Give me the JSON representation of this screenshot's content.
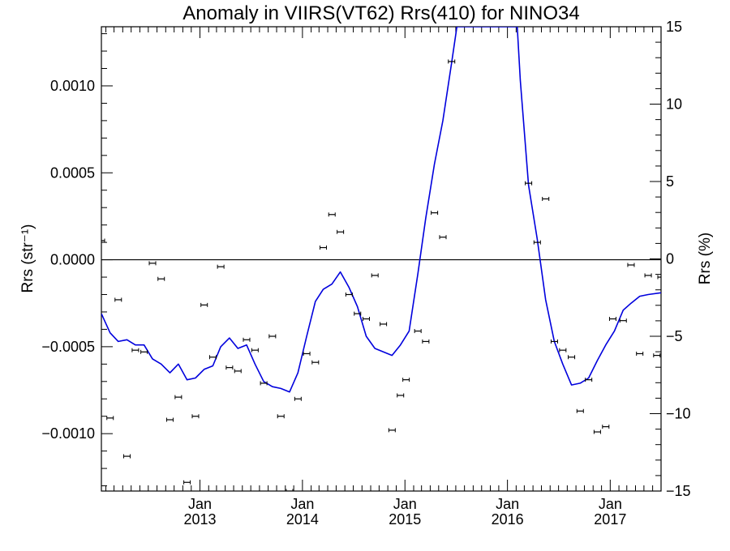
{
  "chart_data": {
    "type": "line",
    "title": "Anomaly in VIIRS(VT62) Rrs(410) for NINO34",
    "ylabel_left": "Rrs (str⁻¹)",
    "ylabel_right": "Rrs (%)",
    "xlabel": "",
    "x_range": [
      "2012-01-16",
      "2017-07-01"
    ],
    "ylim_left": [
      -0.00133,
      0.00134
    ],
    "ylim_right": [
      -15,
      15
    ],
    "grid": false,
    "legend": "none",
    "zero_line": true,
    "x_ticks": [
      {
        "date": "2013-01-01",
        "month": "Jan",
        "year": "2013"
      },
      {
        "date": "2014-01-01",
        "month": "Jan",
        "year": "2014"
      },
      {
        "date": "2015-01-01",
        "month": "Jan",
        "year": "2015"
      },
      {
        "date": "2016-01-01",
        "month": "Jan",
        "year": "2016"
      },
      {
        "date": "2017-01-01",
        "month": "Jan",
        "year": "2017"
      }
    ],
    "y_ticks_left": [
      {
        "value": 0.001,
        "label": "0.0010"
      },
      {
        "value": 0.0005,
        "label": "0.0005"
      },
      {
        "value": 0.0,
        "label": "0.0000"
      },
      {
        "value": -0.0005,
        "label": "−0.0005"
      },
      {
        "value": -0.001,
        "label": "−0.0010"
      }
    ],
    "y_ticks_right": [
      {
        "value": 15,
        "label": "15"
      },
      {
        "value": 10,
        "label": "10"
      },
      {
        "value": 5,
        "label": "5"
      },
      {
        "value": 0,
        "label": "0"
      },
      {
        "value": -5,
        "label": "−5"
      },
      {
        "value": -10,
        "label": "−10"
      },
      {
        "value": -15,
        "label": "−15"
      }
    ],
    "series": [
      {
        "axis": "left",
        "style": "points-with-errorbars",
        "color": "#000000",
        "points": [
          {
            "x": "2012-01-16",
            "y": 0.00011
          },
          {
            "x": "2012-02-16",
            "y": -0.00091
          },
          {
            "x": "2012-03-16",
            "y": -0.00023
          },
          {
            "x": "2012-04-16",
            "y": -0.00113
          },
          {
            "x": "2012-05-16",
            "y": -0.00052
          },
          {
            "x": "2012-06-16",
            "y": -0.00053
          },
          {
            "x": "2012-07-16",
            "y": -2e-05
          },
          {
            "x": "2012-08-16",
            "y": -0.00011
          },
          {
            "x": "2012-09-16",
            "y": -0.00092
          },
          {
            "x": "2012-10-16",
            "y": -0.00079
          },
          {
            "x": "2012-11-16",
            "y": -0.00128
          },
          {
            "x": "2012-12-16",
            "y": -0.0009
          },
          {
            "x": "2013-01-16",
            "y": -0.00026
          },
          {
            "x": "2013-02-16",
            "y": -0.00056
          },
          {
            "x": "2013-03-16",
            "y": -4e-05
          },
          {
            "x": "2013-04-16",
            "y": -0.00062
          },
          {
            "x": "2013-05-16",
            "y": -0.00064
          },
          {
            "x": "2013-06-16",
            "y": -0.00046
          },
          {
            "x": "2013-07-16",
            "y": -0.00052
          },
          {
            "x": "2013-08-16",
            "y": -0.00071
          },
          {
            "x": "2013-09-16",
            "y": -0.00044
          },
          {
            "x": "2013-10-16",
            "y": -0.0009
          },
          {
            "x": "2013-11-16",
            "y": -0.00133
          },
          {
            "x": "2013-12-16",
            "y": -0.0008
          },
          {
            "x": "2014-01-16",
            "y": -0.00054
          },
          {
            "x": "2014-02-16",
            "y": -0.00059
          },
          {
            "x": "2014-03-16",
            "y": 7e-05
          },
          {
            "x": "2014-04-16",
            "y": 0.00026
          },
          {
            "x": "2014-05-16",
            "y": 0.00016
          },
          {
            "x": "2014-06-16",
            "y": -0.0002
          },
          {
            "x": "2014-07-16",
            "y": -0.00031
          },
          {
            "x": "2014-08-16",
            "y": -0.00034
          },
          {
            "x": "2014-09-16",
            "y": -9e-05
          },
          {
            "x": "2014-10-16",
            "y": -0.00037
          },
          {
            "x": "2014-11-16",
            "y": -0.00098
          },
          {
            "x": "2014-12-16",
            "y": -0.00078
          },
          {
            "x": "2015-01-05",
            "y": -0.00069
          },
          {
            "x": "2015-02-16",
            "y": -0.00041
          },
          {
            "x": "2015-03-16",
            "y": -0.00047
          },
          {
            "x": "2015-04-16",
            "y": 0.00027
          },
          {
            "x": "2015-05-16",
            "y": 0.00013
          },
          {
            "x": "2015-06-16",
            "y": 0.00114
          },
          {
            "x": "2016-03-16",
            "y": 0.00044
          },
          {
            "x": "2016-04-16",
            "y": 0.0001
          },
          {
            "x": "2016-05-16",
            "y": 0.00035
          },
          {
            "x": "2016-06-16",
            "y": -0.00047
          },
          {
            "x": "2016-07-16",
            "y": -0.00052
          },
          {
            "x": "2016-08-16",
            "y": -0.00056
          },
          {
            "x": "2016-09-16",
            "y": -0.00087
          },
          {
            "x": "2016-10-16",
            "y": -0.00069
          },
          {
            "x": "2016-11-16",
            "y": -0.00099
          },
          {
            "x": "2016-12-16",
            "y": -0.00096
          },
          {
            "x": "2017-01-10",
            "y": -0.00034
          },
          {
            "x": "2017-02-16",
            "y": -0.00035
          },
          {
            "x": "2017-03-16",
            "y": -3e-05
          },
          {
            "x": "2017-04-16",
            "y": -0.00054
          },
          {
            "x": "2017-05-16",
            "y": -9e-05
          },
          {
            "x": "2017-06-16",
            "y": -0.00055
          },
          {
            "x": "2017-07-01",
            "y": -0.0001
          }
        ]
      },
      {
        "axis": "left",
        "style": "line",
        "color": "#0000dd",
        "points": [
          {
            "x": "2012-01-16",
            "y": -0.00031
          },
          {
            "x": "2012-02-16",
            "y": -0.00042
          },
          {
            "x": "2012-03-16",
            "y": -0.00047
          },
          {
            "x": "2012-04-16",
            "y": -0.00046
          },
          {
            "x": "2012-05-16",
            "y": -0.00049
          },
          {
            "x": "2012-06-16",
            "y": -0.00049
          },
          {
            "x": "2012-07-16",
            "y": -0.00057
          },
          {
            "x": "2012-08-16",
            "y": -0.0006
          },
          {
            "x": "2012-09-16",
            "y": -0.00065
          },
          {
            "x": "2012-10-16",
            "y": -0.0006
          },
          {
            "x": "2012-11-16",
            "y": -0.00069
          },
          {
            "x": "2012-12-16",
            "y": -0.00068
          },
          {
            "x": "2013-01-16",
            "y": -0.00063
          },
          {
            "x": "2013-02-16",
            "y": -0.00061
          },
          {
            "x": "2013-03-16",
            "y": -0.0005
          },
          {
            "x": "2013-04-16",
            "y": -0.00045
          },
          {
            "x": "2013-05-16",
            "y": -0.00051
          },
          {
            "x": "2013-06-16",
            "y": -0.00049
          },
          {
            "x": "2013-07-16",
            "y": -0.0006
          },
          {
            "x": "2013-08-16",
            "y": -0.0007
          },
          {
            "x": "2013-09-16",
            "y": -0.00073
          },
          {
            "x": "2013-10-16",
            "y": -0.00074
          },
          {
            "x": "2013-11-16",
            "y": -0.00076
          },
          {
            "x": "2013-12-16",
            "y": -0.00065
          },
          {
            "x": "2014-01-16",
            "y": -0.00044
          },
          {
            "x": "2014-02-16",
            "y": -0.00024
          },
          {
            "x": "2014-03-16",
            "y": -0.00017
          },
          {
            "x": "2014-04-16",
            "y": -0.00014
          },
          {
            "x": "2014-05-16",
            "y": -7e-05
          },
          {
            "x": "2014-06-16",
            "y": -0.00016
          },
          {
            "x": "2014-07-16",
            "y": -0.00027
          },
          {
            "x": "2014-08-16",
            "y": -0.00044
          },
          {
            "x": "2014-09-16",
            "y": -0.00051
          },
          {
            "x": "2014-10-16",
            "y": -0.00053
          },
          {
            "x": "2014-11-16",
            "y": -0.00055
          },
          {
            "x": "2014-12-16",
            "y": -0.00049
          },
          {
            "x": "2015-01-16",
            "y": -0.00041
          },
          {
            "x": "2015-02-16",
            "y": -8e-05
          },
          {
            "x": "2015-03-16",
            "y": 0.00024
          },
          {
            "x": "2015-04-16",
            "y": 0.00055
          },
          {
            "x": "2015-05-16",
            "y": 0.0008
          },
          {
            "x": "2015-06-16",
            "y": 0.00113
          },
          {
            "x": "2015-07-05",
            "y": 0.00134
          },
          {
            "x": "2016-02-05",
            "y": 0.00134
          },
          {
            "x": "2016-02-16",
            "y": 0.00103
          },
          {
            "x": "2016-03-16",
            "y": 0.00043
          },
          {
            "x": "2016-04-16",
            "y": 0.00012
          },
          {
            "x": "2016-05-16",
            "y": -0.00023
          },
          {
            "x": "2016-06-16",
            "y": -0.00047
          },
          {
            "x": "2016-07-16",
            "y": -0.0006
          },
          {
            "x": "2016-08-16",
            "y": -0.00072
          },
          {
            "x": "2016-09-16",
            "y": -0.00071
          },
          {
            "x": "2016-10-16",
            "y": -0.00068
          },
          {
            "x": "2016-11-16",
            "y": -0.00058
          },
          {
            "x": "2016-12-16",
            "y": -0.00049
          },
          {
            "x": "2017-01-16",
            "y": -0.00041
          },
          {
            "x": "2017-02-16",
            "y": -0.00029
          },
          {
            "x": "2017-03-16",
            "y": -0.00025
          },
          {
            "x": "2017-04-16",
            "y": -0.00021
          },
          {
            "x": "2017-05-16",
            "y": -0.0002
          },
          {
            "x": "2017-07-01",
            "y": -0.00019
          }
        ]
      }
    ]
  }
}
